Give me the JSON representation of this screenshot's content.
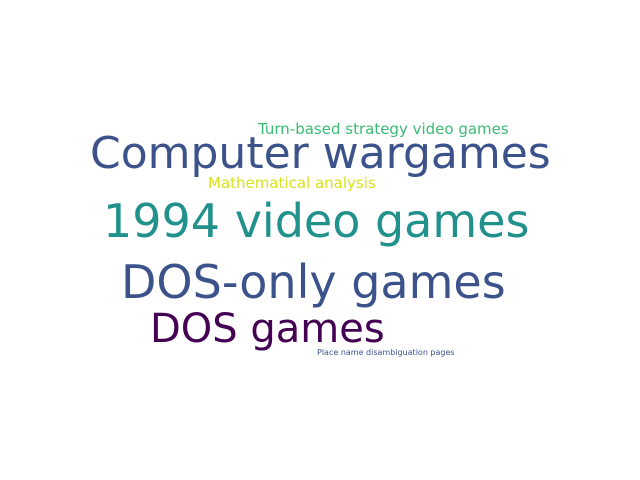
{
  "words": [
    {
      "text": "Turn-based strategy video games",
      "color": "#3cbb75"
    },
    {
      "text": "Computer wargames",
      "color": "#3b528b"
    },
    {
      "text": "Mathematical analysis",
      "color": "#d8e219"
    },
    {
      "text": "1994 video games",
      "color": "#21918c"
    },
    {
      "text": "DOS-only games",
      "color": "#3b528b"
    },
    {
      "text": "DOS games",
      "color": "#440154"
    },
    {
      "text": "Place name disambiguation pages",
      "color": "#3b528b"
    }
  ]
}
